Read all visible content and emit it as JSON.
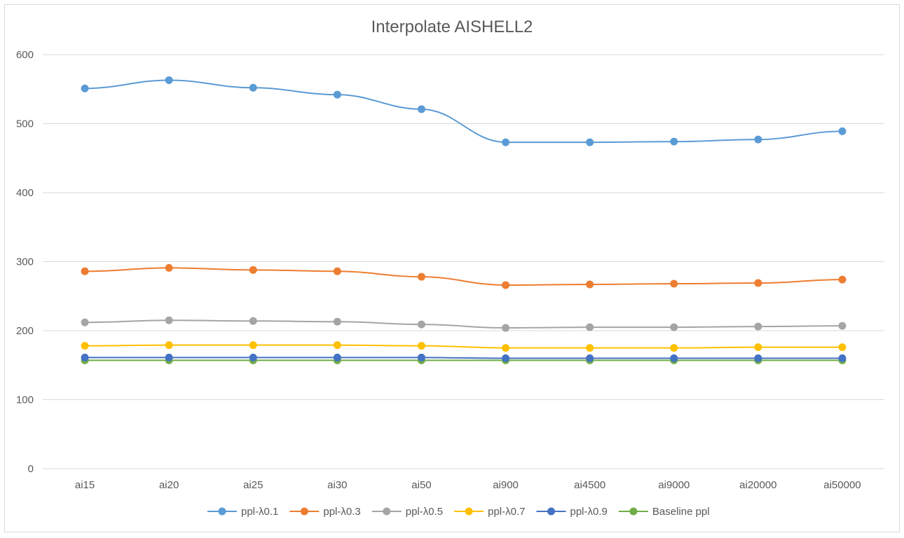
{
  "chart_data": {
    "type": "line",
    "title": "Interpolate AISHELL2",
    "xlabel": "",
    "ylabel": "",
    "categories": [
      "ai15",
      "ai20",
      "ai25",
      "ai30",
      "ai50",
      "ai900",
      "ai4500",
      "ai9000",
      "ai20000",
      "ai50000"
    ],
    "ylim": [
      0,
      600
    ],
    "yticks": [
      0,
      100,
      200,
      300,
      400,
      500,
      600
    ],
    "grid": true,
    "legend_position": "bottom",
    "series": [
      {
        "name": "ppl-λ0.1",
        "color": "#5b9bd5",
        "values": [
          551,
          563,
          552,
          542,
          521,
          473,
          473,
          474,
          477,
          489
        ]
      },
      {
        "name": "ppl-λ0.3",
        "color": "#ed7d31",
        "values": [
          286,
          291,
          288,
          286,
          278,
          266,
          267,
          268,
          269,
          274
        ]
      },
      {
        "name": "ppl-λ0.5",
        "color": "#a5a5a5",
        "values": [
          212,
          215,
          214,
          213,
          209,
          204,
          205,
          205,
          206,
          207
        ]
      },
      {
        "name": "ppl-λ0.7",
        "color": "#ffc000",
        "values": [
          178,
          179,
          179,
          179,
          178,
          175,
          175,
          175,
          176,
          176
        ]
      },
      {
        "name": "ppl-λ0.9",
        "color": "#4472c4",
        "values": [
          161,
          161,
          161,
          161,
          161,
          160,
          160,
          160,
          160,
          160
        ]
      },
      {
        "name": "Baseline ppl",
        "color": "#70ad47",
        "values": [
          157,
          157,
          157,
          157,
          157,
          157,
          157,
          157,
          157,
          157
        ]
      }
    ]
  }
}
